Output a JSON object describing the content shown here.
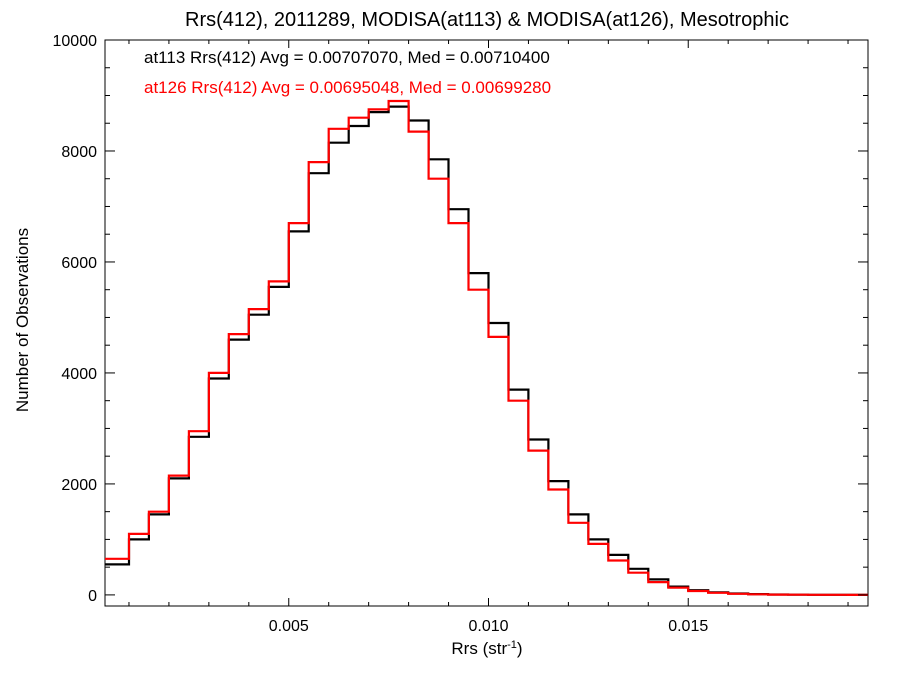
{
  "chart_data": {
    "type": "line",
    "step": true,
    "title": "Rrs(412), 2011289, MODISA(at113) & MODISA(at126), Mesotrophic",
    "xlabel": "Rrs (str",
    "xlabel_sup": "-1",
    "xlabel_end": ")",
    "ylabel": "Number of Observations",
    "xlim": [
      0.0004,
      0.0195
    ],
    "ylim": [
      -200,
      10000
    ],
    "x_ticks": [
      0.005,
      0.01,
      0.015
    ],
    "x_tick_labels": [
      "0.005",
      "0.010",
      "0.015"
    ],
    "y_ticks": [
      0,
      2000,
      4000,
      6000,
      8000,
      10000
    ],
    "y_tick_labels": [
      "0",
      "2000",
      "4000",
      "6000",
      "8000",
      "10000"
    ],
    "grid": false,
    "legend_placement": "top-left",
    "annotations": [
      {
        "text": "at113 Rrs(412) Avg = 0.00707070, Med = 0.00710400",
        "color": "#000000"
      },
      {
        "text": "at126 Rrs(412) Avg = 0.00695048, Med = 0.00699280",
        "color": "#ff0000"
      }
    ],
    "series": [
      {
        "color": "#000000",
        "x": [
          0.0004,
          0.001,
          0.0015,
          0.002,
          0.0025,
          0.003,
          0.0035,
          0.004,
          0.0045,
          0.005,
          0.0055,
          0.006,
          0.0065,
          0.007,
          0.0075,
          0.008,
          0.0085,
          0.009,
          0.0095,
          0.01,
          0.0105,
          0.011,
          0.0115,
          0.012,
          0.0125,
          0.013,
          0.0135,
          0.014,
          0.0145,
          0.015,
          0.0155,
          0.016,
          0.0165,
          0.017,
          0.0175,
          0.018,
          0.0185,
          0.019,
          0.0195
        ],
        "y": [
          550,
          1000,
          1450,
          2100,
          2850,
          3900,
          4600,
          5050,
          5550,
          6550,
          7600,
          8150,
          8450,
          8700,
          8800,
          8550,
          7850,
          6950,
          5800,
          4900,
          3700,
          2800,
          2050,
          1450,
          1000,
          720,
          470,
          280,
          150,
          85,
          45,
          25,
          14,
          7,
          4,
          2,
          1,
          0,
          0
        ]
      },
      {
        "color": "#ff0000",
        "x": [
          0.0004,
          0.001,
          0.0015,
          0.002,
          0.0025,
          0.003,
          0.0035,
          0.004,
          0.0045,
          0.005,
          0.0055,
          0.006,
          0.0065,
          0.007,
          0.0075,
          0.008,
          0.0085,
          0.009,
          0.0095,
          0.01,
          0.0105,
          0.011,
          0.0115,
          0.012,
          0.0125,
          0.013,
          0.0135,
          0.014,
          0.0145,
          0.015,
          0.0155,
          0.016,
          0.0165,
          0.017,
          0.0175,
          0.018,
          0.0185,
          0.019,
          0.0195
        ],
        "y": [
          650,
          1100,
          1500,
          2150,
          2950,
          4000,
          4700,
          5150,
          5650,
          6700,
          7800,
          8400,
          8600,
          8750,
          8900,
          8350,
          7500,
          6700,
          5500,
          4650,
          3500,
          2600,
          1900,
          1300,
          920,
          620,
          400,
          230,
          130,
          70,
          38,
          20,
          11,
          6,
          3,
          2,
          1,
          0,
          0
        ]
      }
    ]
  }
}
